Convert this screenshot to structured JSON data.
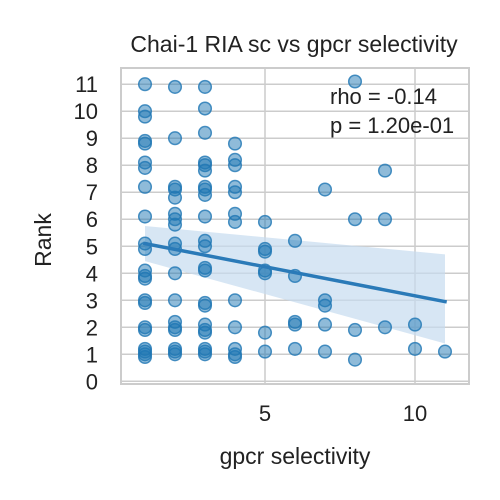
{
  "chart_data": {
    "type": "scatter",
    "title": "Chai-1 RIA sc vs gpcr selectivity",
    "xlabel": "gpcr selectivity",
    "ylabel": "Rank",
    "xlim": [
      0.2,
      11.8
    ],
    "ylim": [
      -0.1,
      11.6
    ],
    "x_ticks": [
      5,
      10
    ],
    "y_ticks": [
      0,
      1,
      2,
      3,
      4,
      5,
      6,
      7,
      8,
      9,
      10,
      11
    ],
    "grid": true,
    "annotations": {
      "rho": "rho = -0.14",
      "p": "p = 1.20e-01"
    },
    "colors": {
      "points": "#1f77b4",
      "line": "#2a7ab8",
      "band": "#c6dbef"
    },
    "points": [
      {
        "x": 1,
        "y": 11.0
      },
      {
        "x": 1,
        "y": 10.0
      },
      {
        "x": 1,
        "y": 9.8
      },
      {
        "x": 1,
        "y": 8.9
      },
      {
        "x": 1,
        "y": 8.8
      },
      {
        "x": 1,
        "y": 8.1
      },
      {
        "x": 1,
        "y": 7.9
      },
      {
        "x": 1,
        "y": 7.2
      },
      {
        "x": 1,
        "y": 6.1
      },
      {
        "x": 1,
        "y": 5.1
      },
      {
        "x": 1,
        "y": 4.9
      },
      {
        "x": 1,
        "y": 4.1
      },
      {
        "x": 1,
        "y": 3.9
      },
      {
        "x": 1,
        "y": 3.8
      },
      {
        "x": 1,
        "y": 3.0
      },
      {
        "x": 1,
        "y": 2.9
      },
      {
        "x": 1,
        "y": 2.0
      },
      {
        "x": 1,
        "y": 1.9
      },
      {
        "x": 1,
        "y": 1.2
      },
      {
        "x": 1,
        "y": 1.1
      },
      {
        "x": 1,
        "y": 1.0
      },
      {
        "x": 1,
        "y": 0.9
      },
      {
        "x": 2,
        "y": 10.9
      },
      {
        "x": 2,
        "y": 9.0
      },
      {
        "x": 2,
        "y": 7.2
      },
      {
        "x": 2,
        "y": 7.1
      },
      {
        "x": 2,
        "y": 6.8
      },
      {
        "x": 2,
        "y": 6.2
      },
      {
        "x": 2,
        "y": 6.0
      },
      {
        "x": 2,
        "y": 5.8
      },
      {
        "x": 2,
        "y": 5.1
      },
      {
        "x": 2,
        "y": 4.9
      },
      {
        "x": 2,
        "y": 4.0
      },
      {
        "x": 2,
        "y": 3.0
      },
      {
        "x": 2,
        "y": 2.2
      },
      {
        "x": 2,
        "y": 2.0
      },
      {
        "x": 2,
        "y": 1.9
      },
      {
        "x": 2,
        "y": 1.2
      },
      {
        "x": 2,
        "y": 1.1
      },
      {
        "x": 2,
        "y": 1.0
      },
      {
        "x": 3,
        "y": 10.9
      },
      {
        "x": 3,
        "y": 10.1
      },
      {
        "x": 3,
        "y": 9.2
      },
      {
        "x": 3,
        "y": 8.1
      },
      {
        "x": 3,
        "y": 8.0
      },
      {
        "x": 3,
        "y": 7.8
      },
      {
        "x": 3,
        "y": 7.2
      },
      {
        "x": 3,
        "y": 7.1
      },
      {
        "x": 3,
        "y": 6.9
      },
      {
        "x": 3,
        "y": 6.1
      },
      {
        "x": 3,
        "y": 5.2
      },
      {
        "x": 3,
        "y": 5.0
      },
      {
        "x": 3,
        "y": 4.2
      },
      {
        "x": 3,
        "y": 4.1
      },
      {
        "x": 3,
        "y": 2.9
      },
      {
        "x": 3,
        "y": 2.8
      },
      {
        "x": 3,
        "y": 2.1
      },
      {
        "x": 3,
        "y": 1.9
      },
      {
        "x": 3,
        "y": 1.8
      },
      {
        "x": 3,
        "y": 1.2
      },
      {
        "x": 3,
        "y": 1.1
      },
      {
        "x": 3,
        "y": 1.0
      },
      {
        "x": 4,
        "y": 8.8
      },
      {
        "x": 4,
        "y": 8.2
      },
      {
        "x": 4,
        "y": 8.0
      },
      {
        "x": 4,
        "y": 7.2
      },
      {
        "x": 4,
        "y": 7.0
      },
      {
        "x": 4,
        "y": 6.2
      },
      {
        "x": 4,
        "y": 5.9
      },
      {
        "x": 4,
        "y": 3.0
      },
      {
        "x": 4,
        "y": 2.0
      },
      {
        "x": 4,
        "y": 1.2
      },
      {
        "x": 4,
        "y": 1.0
      },
      {
        "x": 4,
        "y": 0.9
      },
      {
        "x": 5,
        "y": 5.9
      },
      {
        "x": 5,
        "y": 4.9
      },
      {
        "x": 5,
        "y": 4.8
      },
      {
        "x": 5,
        "y": 4.1
      },
      {
        "x": 5,
        "y": 4.0
      },
      {
        "x": 5,
        "y": 1.8
      },
      {
        "x": 5,
        "y": 1.1
      },
      {
        "x": 6,
        "y": 5.2
      },
      {
        "x": 6,
        "y": 3.9
      },
      {
        "x": 6,
        "y": 2.2
      },
      {
        "x": 6,
        "y": 2.1
      },
      {
        "x": 6,
        "y": 1.2
      },
      {
        "x": 7,
        "y": 7.1
      },
      {
        "x": 7,
        "y": 3.0
      },
      {
        "x": 7,
        "y": 2.8
      },
      {
        "x": 7,
        "y": 2.1
      },
      {
        "x": 7,
        "y": 1.1
      },
      {
        "x": 8,
        "y": 11.1
      },
      {
        "x": 8,
        "y": 6.0
      },
      {
        "x": 8,
        "y": 1.9
      },
      {
        "x": 8,
        "y": 0.8
      },
      {
        "x": 9,
        "y": 7.8
      },
      {
        "x": 9,
        "y": 6.0
      },
      {
        "x": 9,
        "y": 2.0
      },
      {
        "x": 10,
        "y": 2.1
      },
      {
        "x": 10,
        "y": 1.2
      },
      {
        "x": 11,
        "y": 1.1
      }
    ],
    "regression": {
      "x": [
        1,
        11
      ],
      "y": [
        5.1,
        2.95
      ]
    },
    "confidence_band": {
      "x": [
        1,
        11
      ],
      "upper": [
        5.75,
        4.7
      ],
      "lower": [
        4.45,
        1.4
      ]
    }
  }
}
